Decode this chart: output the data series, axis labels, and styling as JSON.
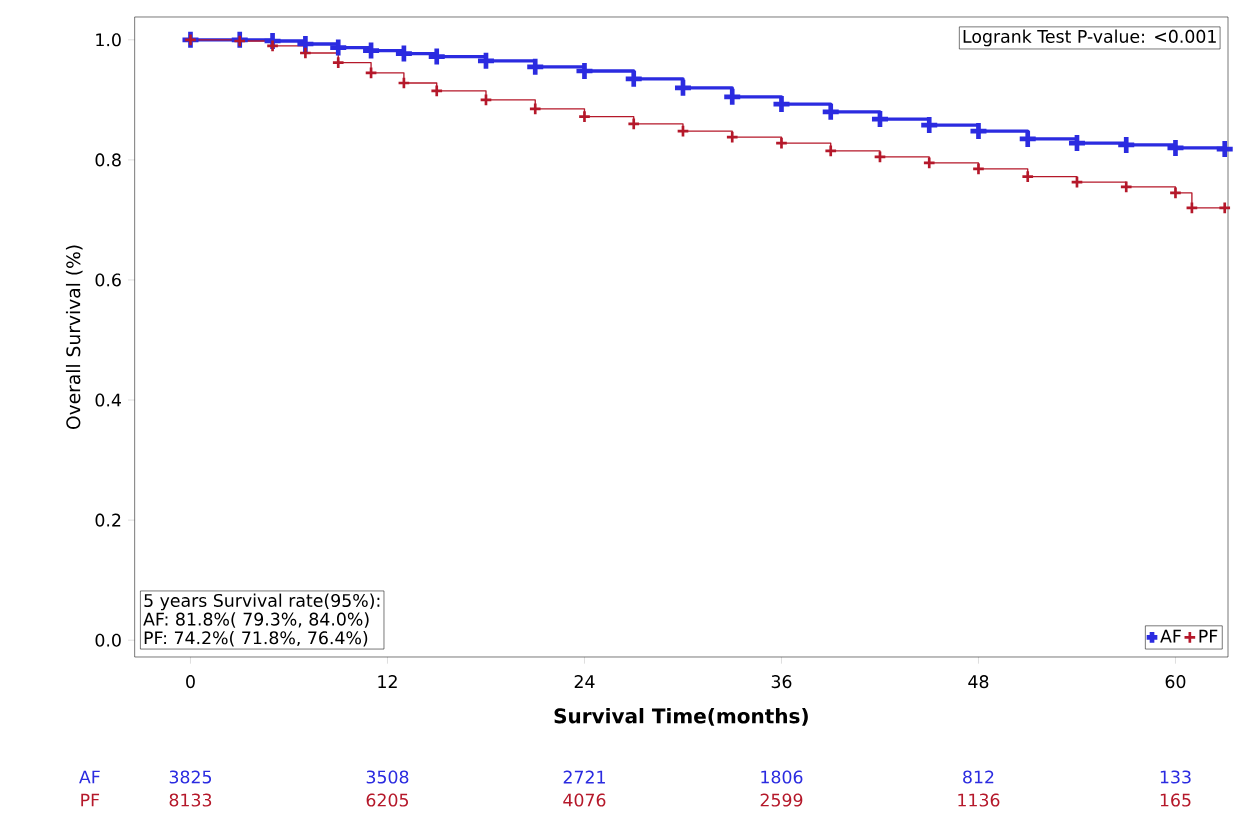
{
  "chart_data": {
    "type": "step",
    "xlabel": "Survival Time(months)",
    "ylabel": "Overall Survival (%)",
    "xlim": [
      -3.4,
      63.2
    ],
    "ylim": [
      -0.028,
      1.038
    ],
    "xticks": [
      0,
      12,
      24,
      36,
      48,
      60
    ],
    "yticks": [
      {
        "value": 0,
        "label": "0.0"
      },
      {
        "value": 0.2,
        "label": "0.2"
      },
      {
        "value": 0.4,
        "label": "0.4"
      },
      {
        "value": 0.6,
        "label": "0.6"
      },
      {
        "value": 0.8,
        "label": "0.8"
      },
      {
        "value": 1,
        "label": "1.0"
      }
    ],
    "grid": false,
    "legend": "bottom right",
    "marker": "cross",
    "line_style": "solid",
    "series": [
      {
        "name": "AF",
        "color": "#2b2be0",
        "x": [
          0,
          3,
          5,
          7,
          9,
          11,
          13,
          15,
          18,
          21,
          24,
          27,
          30,
          33,
          36,
          39,
          42,
          45,
          48,
          51,
          54,
          57,
          60,
          63
        ],
        "values": [
          1.0,
          1.0,
          0.998,
          0.993,
          0.987,
          0.982,
          0.977,
          0.972,
          0.965,
          0.955,
          0.948,
          0.935,
          0.92,
          0.905,
          0.893,
          0.88,
          0.868,
          0.858,
          0.848,
          0.835,
          0.828,
          0.825,
          0.82,
          0.818
        ]
      },
      {
        "name": "PF",
        "color": "#b5182a",
        "x": [
          0,
          3,
          5,
          7,
          9,
          11,
          13,
          15,
          18,
          21,
          24,
          27,
          30,
          33,
          36,
          39,
          42,
          45,
          48,
          51,
          54,
          57,
          60,
          61,
          63
        ],
        "values": [
          1.0,
          0.998,
          0.99,
          0.978,
          0.962,
          0.945,
          0.928,
          0.915,
          0.9,
          0.885,
          0.872,
          0.86,
          0.848,
          0.838,
          0.828,
          0.815,
          0.805,
          0.795,
          0.785,
          0.772,
          0.763,
          0.755,
          0.745,
          0.72,
          0.72
        ]
      }
    ],
    "annotations": [
      "Logrank Test P-value: <0.001",
      "5 years Survival rate(95%):",
      "AF: 81.8%( 79.3%, 84.0%)",
      "PF: 74.2%( 71.8%, 76.4%)",
      "AF",
      "3825",
      "3508",
      "2721",
      "1806",
      "812",
      "133",
      "PF",
      "8133",
      "6205",
      "4076",
      "2599",
      "1136",
      "165"
    ]
  }
}
